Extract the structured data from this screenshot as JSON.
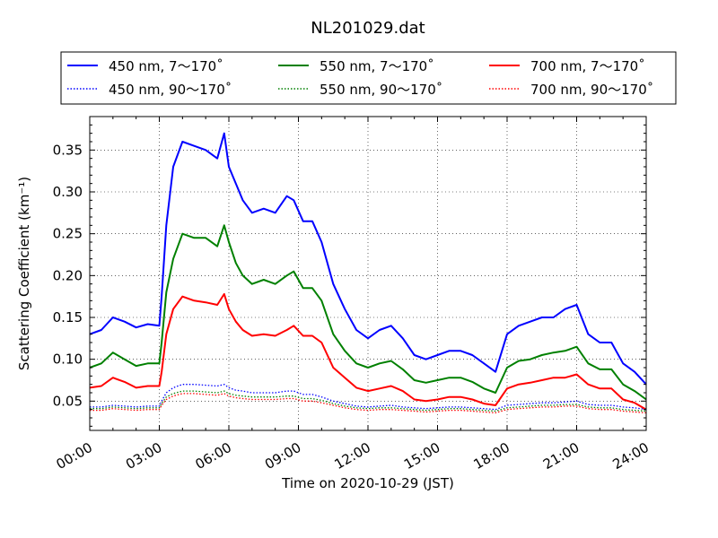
{
  "chart_data": {
    "type": "line",
    "title": "NL201029.dat",
    "xlabel": "Time on 2020-10-29 (JST)",
    "ylabel": "Scattering Coefficient (km⁻¹)",
    "xlim": [
      0,
      24
    ],
    "ylim": [
      0.015,
      0.39
    ],
    "x_ticks": [
      0,
      3,
      6,
      9,
      12,
      15,
      18,
      21,
      24
    ],
    "x_tick_labels": [
      "00:00",
      "03:00",
      "06:00",
      "09:00",
      "12:00",
      "15:00",
      "18:00",
      "21:00",
      "24:00"
    ],
    "y_ticks": [
      0.05,
      0.1,
      0.15,
      0.2,
      0.25,
      0.3,
      0.35
    ],
    "y_tick_labels": [
      "0.05",
      "0.10",
      "0.15",
      "0.20",
      "0.25",
      "0.30",
      "0.35"
    ],
    "grid": true,
    "legend_position": "top",
    "x": [
      0,
      0.5,
      1,
      1.5,
      2,
      2.5,
      3,
      3.1,
      3.3,
      3.6,
      4,
      4.5,
      5,
      5.5,
      5.8,
      6,
      6.3,
      6.6,
      7,
      7.5,
      8,
      8.5,
      8.8,
      9.2,
      9.6,
      10,
      10.5,
      11,
      11.5,
      12,
      12.5,
      13,
      13.5,
      14,
      14.5,
      15,
      15.5,
      16,
      16.5,
      17,
      17.5,
      18,
      18.5,
      19,
      19.5,
      20,
      20.5,
      21,
      21.5,
      22,
      22.5,
      23,
      23.5,
      24
    ],
    "series": [
      {
        "name": "450 nm, 7～170˚",
        "color": "#0000ff",
        "style": "solid",
        "values": [
          0.13,
          0.135,
          0.15,
          0.145,
          0.138,
          0.142,
          0.14,
          0.175,
          0.26,
          0.33,
          0.36,
          0.355,
          0.35,
          0.34,
          0.37,
          0.33,
          0.31,
          0.29,
          0.275,
          0.28,
          0.275,
          0.295,
          0.29,
          0.265,
          0.265,
          0.24,
          0.19,
          0.16,
          0.135,
          0.125,
          0.135,
          0.14,
          0.125,
          0.105,
          0.1,
          0.105,
          0.11,
          0.11,
          0.105,
          0.095,
          0.085,
          0.13,
          0.14,
          0.145,
          0.15,
          0.15,
          0.16,
          0.165,
          0.13,
          0.12,
          0.12,
          0.095,
          0.085,
          0.07
        ]
      },
      {
        "name": "550 nm, 7～170˚",
        "color": "#008000",
        "style": "solid",
        "values": [
          0.09,
          0.095,
          0.108,
          0.1,
          0.092,
          0.095,
          0.095,
          0.12,
          0.18,
          0.22,
          0.25,
          0.245,
          0.245,
          0.235,
          0.26,
          0.24,
          0.215,
          0.2,
          0.19,
          0.195,
          0.19,
          0.2,
          0.205,
          0.185,
          0.185,
          0.17,
          0.13,
          0.11,
          0.095,
          0.09,
          0.095,
          0.098,
          0.088,
          0.075,
          0.072,
          0.075,
          0.078,
          0.078,
          0.073,
          0.065,
          0.06,
          0.09,
          0.098,
          0.1,
          0.105,
          0.108,
          0.11,
          0.115,
          0.095,
          0.088,
          0.088,
          0.07,
          0.062,
          0.052
        ]
      },
      {
        "name": "700 nm, 7～170˚",
        "color": "#ff0000",
        "style": "solid",
        "values": [
          0.066,
          0.068,
          0.078,
          0.073,
          0.066,
          0.068,
          0.068,
          0.085,
          0.13,
          0.16,
          0.175,
          0.17,
          0.168,
          0.165,
          0.178,
          0.16,
          0.145,
          0.135,
          0.128,
          0.13,
          0.128,
          0.135,
          0.14,
          0.128,
          0.128,
          0.12,
          0.09,
          0.078,
          0.066,
          0.062,
          0.065,
          0.068,
          0.062,
          0.052,
          0.05,
          0.052,
          0.055,
          0.055,
          0.052,
          0.047,
          0.045,
          0.065,
          0.07,
          0.072,
          0.075,
          0.078,
          0.078,
          0.082,
          0.07,
          0.065,
          0.065,
          0.052,
          0.048,
          0.04
        ]
      },
      {
        "name": "450 nm, 90～170˚",
        "color": "#0000ff",
        "style": "dotted",
        "values": [
          0.043,
          0.043,
          0.045,
          0.044,
          0.043,
          0.044,
          0.044,
          0.05,
          0.06,
          0.066,
          0.07,
          0.07,
          0.069,
          0.068,
          0.07,
          0.066,
          0.063,
          0.062,
          0.06,
          0.06,
          0.06,
          0.062,
          0.062,
          0.058,
          0.058,
          0.055,
          0.05,
          0.047,
          0.044,
          0.043,
          0.044,
          0.045,
          0.043,
          0.042,
          0.041,
          0.042,
          0.043,
          0.043,
          0.042,
          0.041,
          0.04,
          0.045,
          0.046,
          0.047,
          0.048,
          0.048,
          0.049,
          0.05,
          0.046,
          0.045,
          0.045,
          0.043,
          0.042,
          0.04
        ]
      },
      {
        "name": "550 nm, 90～170˚",
        "color": "#008000",
        "style": "dotted",
        "values": [
          0.041,
          0.041,
          0.043,
          0.042,
          0.041,
          0.042,
          0.042,
          0.047,
          0.055,
          0.059,
          0.062,
          0.062,
          0.061,
          0.06,
          0.062,
          0.059,
          0.057,
          0.056,
          0.055,
          0.055,
          0.055,
          0.056,
          0.056,
          0.053,
          0.053,
          0.051,
          0.047,
          0.044,
          0.042,
          0.041,
          0.042,
          0.042,
          0.041,
          0.04,
          0.039,
          0.04,
          0.041,
          0.041,
          0.04,
          0.039,
          0.038,
          0.042,
          0.043,
          0.044,
          0.045,
          0.045,
          0.046,
          0.046,
          0.043,
          0.042,
          0.042,
          0.04,
          0.039,
          0.038
        ]
      },
      {
        "name": "700 nm, 90～170˚",
        "color": "#ff0000",
        "style": "dotted",
        "values": [
          0.039,
          0.039,
          0.041,
          0.04,
          0.039,
          0.04,
          0.04,
          0.045,
          0.052,
          0.056,
          0.059,
          0.059,
          0.058,
          0.057,
          0.059,
          0.056,
          0.054,
          0.053,
          0.052,
          0.052,
          0.052,
          0.053,
          0.053,
          0.05,
          0.05,
          0.048,
          0.045,
          0.042,
          0.04,
          0.039,
          0.04,
          0.04,
          0.039,
          0.038,
          0.037,
          0.038,
          0.039,
          0.039,
          0.038,
          0.037,
          0.036,
          0.04,
          0.041,
          0.042,
          0.043,
          0.043,
          0.044,
          0.044,
          0.041,
          0.04,
          0.04,
          0.038,
          0.037,
          0.036
        ]
      }
    ]
  }
}
